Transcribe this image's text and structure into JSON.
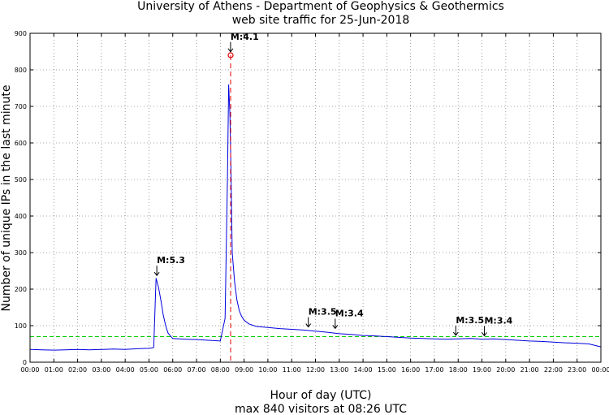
{
  "chart_data": {
    "type": "line",
    "title": "University of Athens - Department of Geophysics & Geothermics",
    "subtitle": "web site traffic for 25-Jun-2018",
    "xlabel": "Hour of day (UTC)",
    "footer": "max 840 visitors at 08:26 UTC",
    "ylabel": "Number of unique IPs in the last minute",
    "xlim": [
      0,
      24
    ],
    "ylim": [
      0,
      900
    ],
    "x_ticks": [
      "00:00",
      "01:00",
      "02:00",
      "03:00",
      "04:00",
      "05:00",
      "06:00",
      "07:00",
      "08:00",
      "09:00",
      "10:00",
      "11:00",
      "12:00",
      "13:00",
      "14:00",
      "15:00",
      "16:00",
      "17:00",
      "18:00",
      "19:00",
      "20:00",
      "21:00",
      "22:00",
      "23:00",
      "00:00"
    ],
    "y_ticks": [
      0,
      100,
      200,
      300,
      400,
      500,
      600,
      700,
      800,
      900
    ],
    "grid": true,
    "series": [
      {
        "color": "#0000dd",
        "x": [
          0,
          0.5,
          1,
          1.5,
          2,
          2.5,
          3,
          3.5,
          4,
          4.5,
          5,
          5.2,
          5.3,
          5.4,
          5.5,
          5.6,
          5.7,
          5.8,
          5.9,
          6,
          6.5,
          7,
          7.5,
          8,
          8.2,
          8.3,
          8.35,
          8.4,
          8.45,
          8.5,
          8.6,
          8.7,
          8.8,
          8.9,
          9,
          9.2,
          9.5,
          10,
          10.5,
          11,
          11.5,
          12,
          12.5,
          13,
          13.5,
          14,
          14.5,
          15,
          15.5,
          16,
          16.5,
          17,
          17.5,
          18,
          18.5,
          19,
          19.5,
          20,
          20.5,
          21,
          21.5,
          22,
          22.5,
          23,
          23.5,
          24
        ],
        "y": [
          35,
          34,
          33,
          34,
          35,
          34,
          35,
          36,
          35,
          37,
          38,
          40,
          230,
          205,
          170,
          130,
          100,
          80,
          72,
          65,
          63,
          62,
          60,
          58,
          120,
          500,
          760,
          680,
          520,
          300,
          220,
          170,
          140,
          125,
          115,
          105,
          98,
          95,
          92,
          90,
          88,
          85,
          82,
          78,
          76,
          73,
          72,
          70,
          68,
          66,
          65,
          64,
          63,
          64,
          65,
          63,
          64,
          62,
          60,
          58,
          57,
          55,
          53,
          52,
          50,
          42
        ]
      }
    ],
    "reference_line": {
      "y": 70,
      "color": "#00cc00"
    },
    "max_marker": {
      "x": 8.433,
      "y": 840,
      "color": "#dd0000"
    },
    "annotations": [
      {
        "label": "M:5.3",
        "x": 5.33,
        "y": 233
      },
      {
        "label": "M:4.1",
        "x": 8.43,
        "y": 845
      },
      {
        "label": "M:3.5",
        "x": 11.7,
        "y": 92
      },
      {
        "label": "M:3.4",
        "x": 12.83,
        "y": 88
      },
      {
        "label": "M:3.5",
        "x": 17.9,
        "y": 69
      },
      {
        "label": "M:3.4",
        "x": 19.1,
        "y": 68
      }
    ]
  }
}
